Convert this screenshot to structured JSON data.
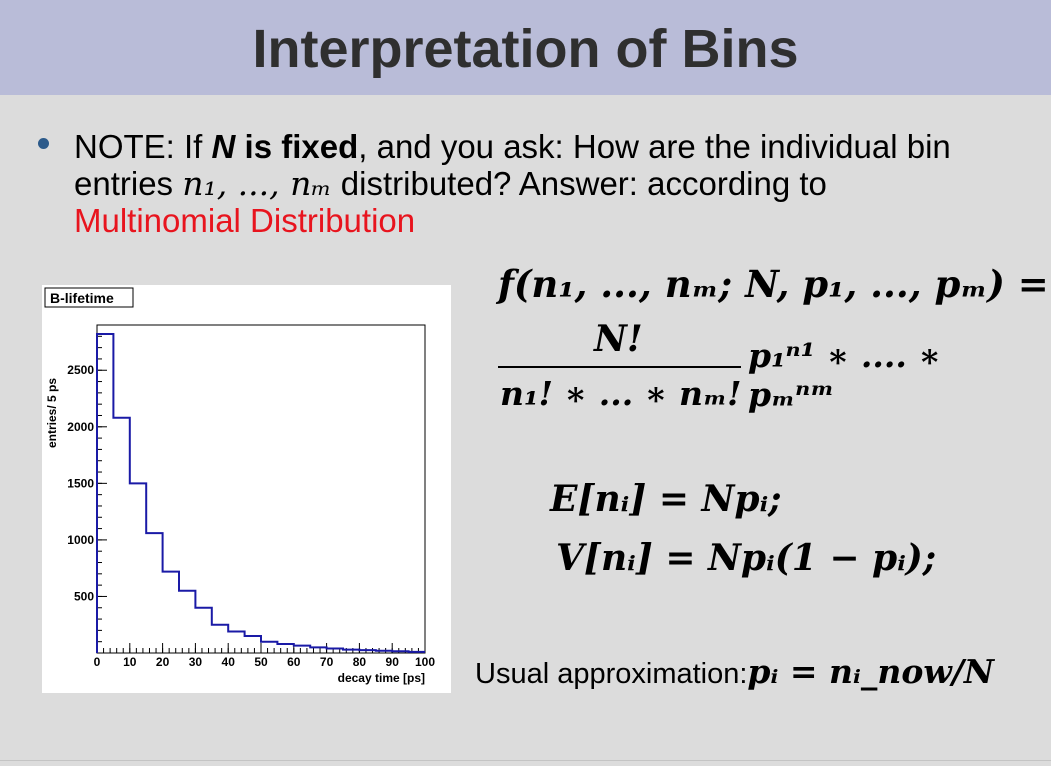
{
  "title": "Interpretation of Bins",
  "note": {
    "prefix": "NOTE: If ",
    "n_bold": "N",
    "is_fixed": " is fixed",
    "middle": ", and you ask: How are the individual bin entries ",
    "bin_entries": "n₁, ..., nₘ",
    "suffix": " distributed? Answer: according to",
    "link": "Multinomial Distribution"
  },
  "formulas": {
    "f_lhs": "f(n₁, ..., nₘ; N, p₁, ..., pₘ) =",
    "frac_num": "N!",
    "frac_den": "n₁! ∗ ... ∗ nₘ!",
    "frac_rest": "p₁ⁿ¹ ∗ .... ∗ pₘⁿᵐ",
    "expectation": "E[nᵢ] = Npᵢ;",
    "variance": "V[nᵢ] = Npᵢ(1 − pᵢ);"
  },
  "approx": {
    "label": "Usual approximation:",
    "formula": "pᵢ = nᵢ_now/N"
  },
  "chart_data": {
    "type": "bar",
    "title": "B-lifetime",
    "xlabel": "decay time [ps]",
    "ylabel": "entries/ 5 ps",
    "xlim": [
      0,
      100
    ],
    "ylim": [
      0,
      2900
    ],
    "x_ticks": [
      "0",
      "10",
      "20",
      "30",
      "40",
      "50",
      "60",
      "70",
      "80",
      "90",
      "100"
    ],
    "y_ticks": [
      "500",
      "1000",
      "1500",
      "2000",
      "2500"
    ],
    "bin_width": 5,
    "bin_starts": [
      0,
      5,
      10,
      15,
      20,
      25,
      30,
      35,
      40,
      45,
      50,
      55,
      60,
      65,
      70,
      75,
      80,
      85,
      90,
      95
    ],
    "values": [
      2820,
      2080,
      1500,
      1060,
      720,
      550,
      400,
      250,
      190,
      150,
      100,
      80,
      65,
      50,
      40,
      30,
      25,
      20,
      15,
      10
    ],
    "line_color": "#1a1aa6"
  }
}
